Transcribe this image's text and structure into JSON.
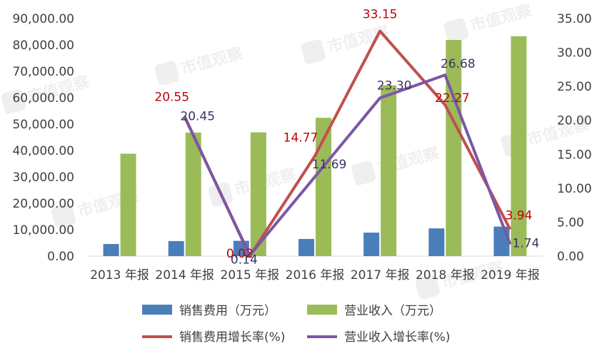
{
  "chart_data": {
    "type": "bar",
    "categories": [
      "2013 年报",
      "2014 年报",
      "2015 年报",
      "2016 年报",
      "2017 年报",
      "2018 年报",
      "2019 年报"
    ],
    "y_left": {
      "range": [
        0,
        90000
      ],
      "ticks": [
        "0.00",
        "10,000.00",
        "20,000.00",
        "30,000.00",
        "40,000.00",
        "50,000.00",
        "60,000.00",
        "70,000.00",
        "80,000.00",
        "90,000.00"
      ]
    },
    "y_right": {
      "range": [
        0,
        35
      ],
      "ticks": [
        "0.00",
        "5.00",
        "10.00",
        "15.00",
        "20.00",
        "25.00",
        "30.00",
        "35.00"
      ]
    },
    "bar_series": [
      {
        "name": "销售费用（万元）",
        "color": "#4a7ebb",
        "axis": "left",
        "values": [
          4600,
          5700,
          5800,
          6500,
          8900,
          10500,
          11200
        ]
      },
      {
        "name": "营业收入（万元）",
        "color": "#9bbb59",
        "axis": "left",
        "values": [
          38800,
          46800,
          46900,
          52400,
          64700,
          81900,
          83300
        ]
      }
    ],
    "line_series": [
      {
        "name": "销售费用增长率(%)",
        "color": "#c0504d",
        "axis": "right",
        "values": [
          null,
          20.55,
          0.02,
          14.77,
          33.15,
          22.27,
          3.94
        ],
        "labels": [
          "",
          "20.55",
          "0.02",
          "14.77",
          "33.15",
          "22.27",
          "3.94"
        ],
        "label_color": "#c00000"
      },
      {
        "name": "营业收入增长率(%)",
        "color": "#7b57a6",
        "axis": "right",
        "values": [
          null,
          20.45,
          0.14,
          11.69,
          23.3,
          26.68,
          1.74
        ],
        "labels": [
          "",
          "20.45",
          "0.14",
          "11.69",
          "23.30",
          "26.68",
          "1.74"
        ],
        "label_color": "#3b3364"
      }
    ],
    "watermark": "市值观察",
    "legend_position": "bottom",
    "grid": false
  }
}
